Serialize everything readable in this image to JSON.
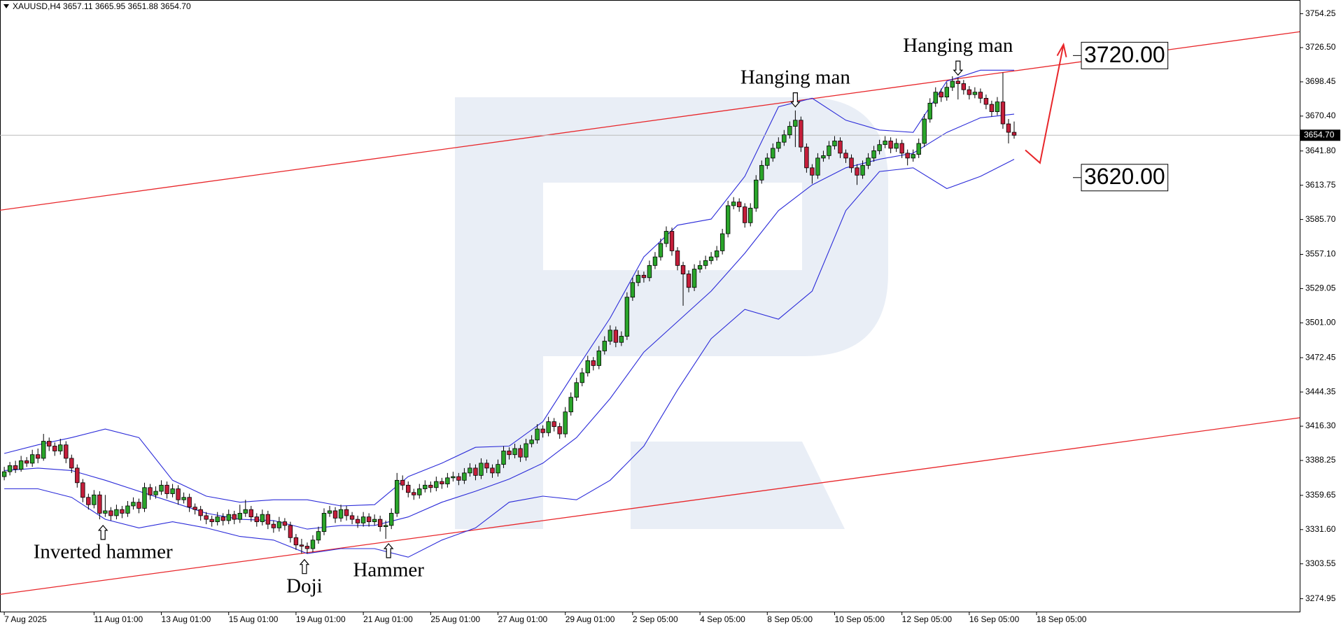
{
  "chart_data": {
    "type": "candlestick",
    "title": "XAUUSD,H4  3657.11 3665.95 3651.88 3654.70",
    "up_color": "#2aa52a",
    "down_color": "#c41e3a",
    "band_color": "#2b2bd9",
    "trend_color": "#e8262a",
    "xlim": [
      -0.76,
      230.9
    ],
    "ylim": [
      3264.4,
      3765.5
    ],
    "xticks": [
      {
        "value": 0,
        "label": "7 Aug 2025"
      },
      {
        "value": 16,
        "label": "11 Aug 01:00"
      },
      {
        "value": 28,
        "label": "13 Aug 01:00"
      },
      {
        "value": 40,
        "label": "15 Aug 01:00"
      },
      {
        "value": 52,
        "label": "19 Aug 01:00"
      },
      {
        "value": 64,
        "label": "21 Aug 01:00"
      },
      {
        "value": 76,
        "label": "25 Aug 01:00"
      },
      {
        "value": 88,
        "label": "27 Aug 01:00"
      },
      {
        "value": 100,
        "label": "29 Aug 01:00"
      },
      {
        "value": 112,
        "label": "2 Sep 05:00"
      },
      {
        "value": 124,
        "label": "4 Sep 05:00"
      },
      {
        "value": 136,
        "label": "8 Sep 05:00"
      },
      {
        "value": 148,
        "label": "10 Sep 05:00"
      },
      {
        "value": 160,
        "label": "12 Sep 05:00"
      },
      {
        "value": 172,
        "label": "16 Sep 05:00"
      },
      {
        "value": 184,
        "label": "18 Sep 05:00"
      }
    ],
    "yticks": [
      3754.25,
      {
        "value": 3726.5,
        "label": "3726.50"
      },
      3698.45,
      {
        "value": 3670.4,
        "label": "3670.40"
      },
      {
        "value": 3641.8,
        "label": "3641.80"
      },
      3613.75,
      {
        "value": 3585.7,
        "label": "3585.70"
      },
      {
        "value": 3557.1,
        "label": "3557.10"
      },
      3529.05,
      {
        "value": 3501,
        "label": "3501.00"
      },
      3472.45,
      3444.35,
      {
        "value": 3416.3,
        "label": "3416.30"
      },
      3388.25,
      3359.65,
      {
        "value": 3331.6,
        "label": "3331.60"
      },
      3303.55,
      3274.95
    ],
    "candles": [
      [
        3375,
        3383,
        3372,
        3379
      ],
      [
        3379,
        3387,
        3376,
        3384
      ],
      [
        3384,
        3388,
        3378,
        3381
      ],
      [
        3381,
        3392,
        3379,
        3388
      ],
      [
        3388,
        3391,
        3383,
        3386
      ],
      [
        3386,
        3397,
        3383,
        3393
      ],
      [
        3393,
        3398,
        3386,
        3390
      ],
      [
        3390,
        3410,
        3388,
        3404
      ],
      [
        3404,
        3407,
        3396,
        3400
      ],
      [
        3400,
        3403,
        3392,
        3396
      ],
      [
        3396,
        3406,
        3393,
        3401
      ],
      [
        3401,
        3404,
        3386,
        3390
      ],
      [
        3390,
        3393,
        3378,
        3382
      ],
      [
        3382,
        3385,
        3366,
        3370
      ],
      [
        3370,
        3373,
        3354,
        3358
      ],
      [
        3358,
        3361,
        3348,
        3352
      ],
      [
        3352,
        3364,
        3349,
        3360
      ],
      [
        3360,
        3363,
        3340,
        3345
      ],
      [
        3345,
        3360,
        3342,
        3347
      ],
      [
        3347,
        3350,
        3339,
        3343
      ],
      [
        3343,
        3352,
        3340,
        3348
      ],
      [
        3348,
        3351,
        3341,
        3345
      ],
      [
        3345,
        3355,
        3342,
        3351
      ],
      [
        3351,
        3358,
        3348,
        3354
      ],
      [
        3354,
        3357,
        3345,
        3349
      ],
      [
        3349,
        3370,
        3346,
        3366
      ],
      [
        3366,
        3369,
        3356,
        3360
      ],
      [
        3360,
        3367,
        3357,
        3363
      ],
      [
        3363,
        3372,
        3360,
        3368
      ],
      [
        3368,
        3371,
        3357,
        3361
      ],
      [
        3361,
        3369,
        3358,
        3365
      ],
      [
        3365,
        3368,
        3352,
        3356
      ],
      [
        3356,
        3362,
        3353,
        3358
      ],
      [
        3358,
        3361,
        3346,
        3350
      ],
      [
        3350,
        3353,
        3344,
        3348
      ],
      [
        3348,
        3351,
        3339,
        3343
      ],
      [
        3343,
        3346,
        3336,
        3340
      ],
      [
        3340,
        3343,
        3334,
        3338
      ],
      [
        3338,
        3346,
        3335,
        3342
      ],
      [
        3342,
        3345,
        3335,
        3339
      ],
      [
        3339,
        3348,
        3336,
        3344
      ],
      [
        3344,
        3347,
        3336,
        3340
      ],
      [
        3340,
        3352,
        3337,
        3345
      ],
      [
        3345,
        3356,
        3342,
        3348
      ],
      [
        3348,
        3351,
        3338,
        3342
      ],
      [
        3342,
        3345,
        3334,
        3338
      ],
      [
        3338,
        3348,
        3335,
        3344
      ],
      [
        3344,
        3347,
        3332,
        3336
      ],
      [
        3336,
        3339,
        3329,
        3333
      ],
      [
        3333,
        3342,
        3330,
        3338
      ],
      [
        3338,
        3341,
        3331,
        3335
      ],
      [
        3335,
        3338,
        3321,
        3325
      ],
      [
        3325,
        3328,
        3315,
        3319
      ],
      [
        3319,
        3324,
        3312,
        3318
      ],
      [
        3318,
        3321,
        3312,
        3316
      ],
      [
        3316,
        3327,
        3313,
        3323
      ],
      [
        3323,
        3334,
        3320,
        3330
      ],
      [
        3330,
        3349,
        3327,
        3345
      ],
      [
        3345,
        3351,
        3342,
        3347
      ],
      [
        3347,
        3350,
        3337,
        3341
      ],
      [
        3341,
        3352,
        3338,
        3348
      ],
      [
        3348,
        3351,
        3339,
        3343
      ],
      [
        3343,
        3346,
        3336,
        3340
      ],
      [
        3340,
        3343,
        3333,
        3337
      ],
      [
        3337,
        3346,
        3334,
        3342
      ],
      [
        3342,
        3345,
        3334,
        3338
      ],
      [
        3338,
        3344,
        3335,
        3340
      ],
      [
        3340,
        3343,
        3330,
        3334
      ],
      [
        3334,
        3339,
        3324,
        3335
      ],
      [
        3335,
        3349,
        3332,
        3345
      ],
      [
        3345,
        3378,
        3342,
        3372
      ],
      [
        3372,
        3376,
        3364,
        3368
      ],
      [
        3368,
        3371,
        3358,
        3362
      ],
      [
        3362,
        3365,
        3356,
        3360
      ],
      [
        3360,
        3369,
        3357,
        3365
      ],
      [
        3365,
        3372,
        3362,
        3368
      ],
      [
        3368,
        3371,
        3362,
        3366
      ],
      [
        3366,
        3375,
        3363,
        3371
      ],
      [
        3371,
        3374,
        3365,
        3369
      ],
      [
        3369,
        3378,
        3366,
        3374
      ],
      [
        3374,
        3379,
        3371,
        3375
      ],
      [
        3375,
        3378,
        3368,
        3372
      ],
      [
        3372,
        3382,
        3369,
        3378
      ],
      [
        3378,
        3386,
        3375,
        3382
      ],
      [
        3382,
        3385,
        3372,
        3376
      ],
      [
        3376,
        3390,
        3373,
        3386
      ],
      [
        3386,
        3389,
        3378,
        3382
      ],
      [
        3382,
        3385,
        3374,
        3378
      ],
      [
        3378,
        3389,
        3375,
        3385
      ],
      [
        3385,
        3400,
        3382,
        3396
      ],
      [
        3396,
        3399,
        3389,
        3393
      ],
      [
        3393,
        3402,
        3390,
        3398
      ],
      [
        3398,
        3401,
        3387,
        3391
      ],
      [
        3391,
        3406,
        3388,
        3402
      ],
      [
        3402,
        3409,
        3399,
        3405
      ],
      [
        3405,
        3418,
        3402,
        3414
      ],
      [
        3414,
        3417,
        3407,
        3411
      ],
      [
        3411,
        3424,
        3408,
        3420
      ],
      [
        3420,
        3423,
        3412,
        3416
      ],
      [
        3416,
        3419,
        3406,
        3410
      ],
      [
        3410,
        3432,
        3407,
        3428
      ],
      [
        3428,
        3444,
        3425,
        3440
      ],
      [
        3440,
        3456,
        3437,
        3452
      ],
      [
        3452,
        3464,
        3449,
        3460
      ],
      [
        3460,
        3474,
        3457,
        3470
      ],
      [
        3470,
        3473,
        3462,
        3466
      ],
      [
        3466,
        3482,
        3463,
        3478
      ],
      [
        3478,
        3490,
        3475,
        3486
      ],
      [
        3486,
        3499,
        3483,
        3495
      ],
      [
        3495,
        3498,
        3481,
        3485
      ],
      [
        3485,
        3494,
        3482,
        3490
      ],
      [
        3490,
        3526,
        3487,
        3522
      ],
      [
        3522,
        3538,
        3519,
        3534
      ],
      [
        3534,
        3544,
        3531,
        3540
      ],
      [
        3540,
        3543,
        3534,
        3538
      ],
      [
        3538,
        3552,
        3535,
        3548
      ],
      [
        3548,
        3559,
        3545,
        3555
      ],
      [
        3555,
        3570,
        3552,
        3566
      ],
      [
        3566,
        3580,
        3563,
        3576
      ],
      [
        3576,
        3579,
        3556,
        3560
      ],
      [
        3560,
        3563,
        3544,
        3548
      ],
      [
        3548,
        3551,
        3515,
        3541
      ],
      [
        3541,
        3544,
        3526,
        3530
      ],
      [
        3530,
        3549,
        3527,
        3545
      ],
      [
        3545,
        3552,
        3542,
        3548
      ],
      [
        3548,
        3556,
        3545,
        3552
      ],
      [
        3552,
        3559,
        3549,
        3555
      ],
      [
        3555,
        3564,
        3552,
        3560
      ],
      [
        3560,
        3578,
        3557,
        3574
      ],
      [
        3574,
        3601,
        3571,
        3597
      ],
      [
        3597,
        3604,
        3594,
        3600
      ],
      [
        3600,
        3603,
        3592,
        3596
      ],
      [
        3596,
        3599,
        3579,
        3583
      ],
      [
        3583,
        3599,
        3580,
        3595
      ],
      [
        3595,
        3622,
        3592,
        3618
      ],
      [
        3618,
        3634,
        3615,
        3630
      ],
      [
        3630,
        3640,
        3627,
        3636
      ],
      [
        3636,
        3648,
        3633,
        3644
      ],
      [
        3644,
        3653,
        3641,
        3649
      ],
      [
        3649,
        3659,
        3646,
        3655
      ],
      [
        3655,
        3666,
        3652,
        3662
      ],
      [
        3662,
        3675,
        3645,
        3667
      ],
      [
        3667,
        3670,
        3641,
        3645
      ],
      [
        3645,
        3648,
        3624,
        3628
      ],
      [
        3628,
        3631,
        3615,
        3622
      ],
      [
        3622,
        3640,
        3619,
        3636
      ],
      [
        3636,
        3642,
        3633,
        3638
      ],
      [
        3638,
        3650,
        3635,
        3646
      ],
      [
        3646,
        3654,
        3643,
        3650
      ],
      [
        3650,
        3653,
        3636,
        3640
      ],
      [
        3640,
        3643,
        3632,
        3636
      ],
      [
        3636,
        3639,
        3624,
        3628
      ],
      [
        3628,
        3631,
        3614,
        3622
      ],
      [
        3622,
        3634,
        3619,
        3630
      ],
      [
        3630,
        3640,
        3627,
        3636
      ],
      [
        3636,
        3646,
        3633,
        3642
      ],
      [
        3642,
        3651,
        3639,
        3647
      ],
      [
        3647,
        3654,
        3644,
        3650
      ],
      [
        3650,
        3653,
        3640,
        3644
      ],
      [
        3644,
        3652,
        3641,
        3648
      ],
      [
        3648,
        3651,
        3636,
        3640
      ],
      [
        3640,
        3643,
        3630,
        3636
      ],
      [
        3636,
        3643,
        3633,
        3639
      ],
      [
        3639,
        3652,
        3636,
        3648
      ],
      [
        3648,
        3672,
        3645,
        3668
      ],
      [
        3668,
        3685,
        3665,
        3681
      ],
      [
        3681,
        3694,
        3678,
        3690
      ],
      [
        3690,
        3693,
        3682,
        3686
      ],
      [
        3686,
        3698,
        3683,
        3694
      ],
      [
        3694,
        3703,
        3691,
        3699
      ],
      [
        3699,
        3702,
        3684,
        3697
      ],
      [
        3697,
        3700,
        3688,
        3692
      ],
      [
        3692,
        3695,
        3684,
        3688
      ],
      [
        3688,
        3694,
        3685,
        3690
      ],
      [
        3690,
        3693,
        3681,
        3685
      ],
      [
        3685,
        3688,
        3676,
        3680
      ],
      [
        3680,
        3683,
        3670,
        3674
      ],
      [
        3674,
        3686,
        3671,
        3682
      ],
      [
        3682,
        3706,
        3660,
        3664
      ],
      [
        3664,
        3668,
        3648,
        3657.11
      ],
      [
        3657.11,
        3665.95,
        3651.88,
        3654.7
      ]
    ],
    "bands": {
      "x": [
        0,
        6,
        12,
        18,
        24,
        30,
        36,
        42,
        48,
        54,
        60,
        66,
        72,
        78,
        84,
        90,
        96,
        102,
        108,
        114,
        120,
        126,
        132,
        138,
        144,
        150,
        156,
        162,
        168,
        174,
        180
      ],
      "upper": [
        3394,
        3401,
        3407,
        3414,
        3407,
        3372,
        3359,
        3354,
        3356,
        3356,
        3351,
        3352,
        3375,
        3386,
        3399,
        3400,
        3420,
        3463,
        3505,
        3555,
        3581,
        3586,
        3621,
        3678,
        3685,
        3667,
        3659,
        3657,
        3699,
        3708,
        3708
      ],
      "middle": [
        3380,
        3382,
        3380,
        3372,
        3363,
        3354,
        3345,
        3340,
        3339,
        3332,
        3335,
        3335,
        3342,
        3354,
        3363,
        3373,
        3386,
        3407,
        3439,
        3477,
        3502,
        3527,
        3558,
        3593,
        3614,
        3628,
        3635,
        3640,
        3657,
        3669,
        3672
      ],
      "lower": [
        3365,
        3365,
        3358,
        3340,
        3333,
        3338,
        3333,
        3326,
        3323,
        3312,
        3316,
        3316,
        3309,
        3323,
        3333,
        3354,
        3359,
        3356,
        3372,
        3400,
        3446,
        3488,
        3512,
        3504,
        3527,
        3593,
        3625,
        3628,
        3611,
        3621,
        3635
      ]
    },
    "trend_lines": [
      {
        "x": [
          -0.76,
          230.9
        ],
        "y": [
          3593.3,
          3739.5
        ]
      },
      {
        "x": [
          -0.76,
          230.9
        ],
        "y": [
          3278.5,
          3423.2
        ]
      }
    ],
    "forecast": {
      "x": [
        182,
        184.6,
        188.8
      ],
      "y": [
        3642.5,
        3632,
        3729
      ]
    },
    "levels": [
      {
        "value": 3720,
        "label": "3720.00"
      },
      {
        "value": 3620,
        "label": "3620.00"
      }
    ],
    "last_price": {
      "value": 3654.7,
      "label": "3654.70"
    },
    "annotations": [
      {
        "text": "Hanging man",
        "x": 141,
        "y": 3678,
        "side": "above"
      },
      {
        "text": "Hanging man",
        "x": 170,
        "y": 3704,
        "side": "above"
      },
      {
        "text": "Inverted hammer",
        "x": 17.6,
        "y": 3335,
        "side": "below"
      },
      {
        "text": "Doji",
        "x": 53.5,
        "y": 3307,
        "side": "below"
      },
      {
        "text": "Hammer",
        "x": 68.5,
        "y": 3320,
        "side": "below"
      }
    ]
  }
}
